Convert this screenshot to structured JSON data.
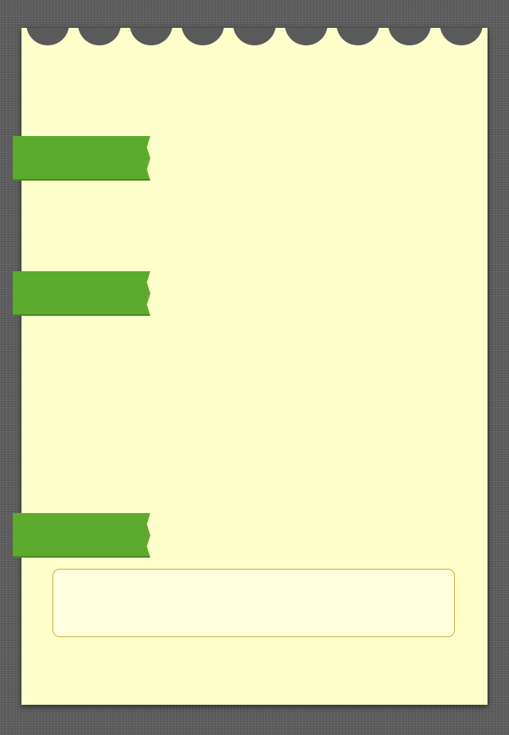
{
  "screen": {
    "name": "note-paper",
    "background_color": "#5f5f5f",
    "paper_color": "#ffffcc",
    "accent_color": "#5cab2e",
    "box_border_color": "#c8b23a"
  },
  "sections": [
    {
      "label": ""
    },
    {
      "label": ""
    },
    {
      "label": ""
    }
  ],
  "note_box": {
    "text": ""
  }
}
